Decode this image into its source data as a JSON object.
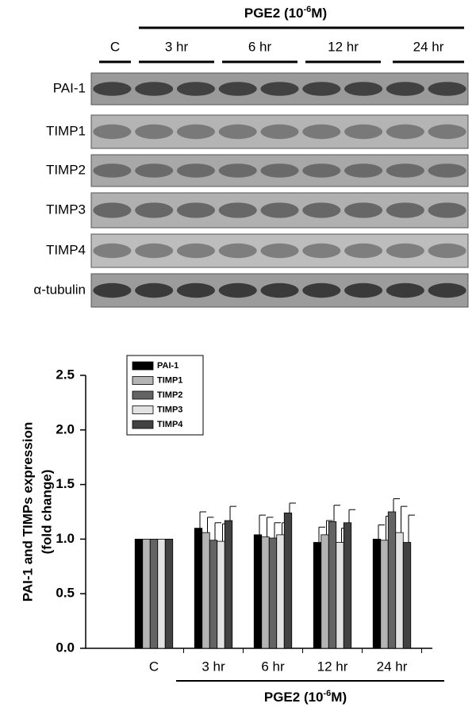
{
  "blot": {
    "title": [
      "PGE2 (10",
      "-6",
      "M)"
    ],
    "lanes": [
      "C",
      "3 hr",
      "6 hr",
      "12 hr",
      "24 hr"
    ],
    "rows": [
      "PAI-1",
      "TIMP1",
      "TIMP2",
      "TIMP3",
      "TIMP4",
      "α-tubulin"
    ]
  },
  "chart_data": {
    "type": "bar",
    "ylabel": [
      "PAI-1 and TIMPs expression",
      "(fold change)"
    ],
    "xlabel": [
      "PGE2 (10",
      "-6",
      "M)"
    ],
    "categories": [
      "C",
      "3 hr",
      "6 hr",
      "12 hr",
      "24 hr"
    ],
    "series": [
      {
        "name": "PAI-1",
        "color": "#000000",
        "values": [
          1.0,
          1.1,
          1.04,
          0.97,
          1.0
        ],
        "errors": [
          null,
          0.15,
          0.18,
          0.14,
          0.13
        ]
      },
      {
        "name": "TIMP1",
        "color": "#b4b4b4",
        "values": [
          1.0,
          1.06,
          1.02,
          1.04,
          0.99
        ],
        "errors": [
          null,
          0.14,
          0.18,
          0.13,
          0.22
        ]
      },
      {
        "name": "TIMP2",
        "color": "#646464",
        "values": [
          1.0,
          0.99,
          1.01,
          1.16,
          1.25
        ],
        "errors": [
          null,
          0.16,
          0.14,
          0.15,
          0.12
        ]
      },
      {
        "name": "TIMP3",
        "color": "#e2e2e2",
        "values": [
          1.0,
          0.98,
          1.04,
          0.97,
          1.06
        ],
        "errors": [
          null,
          0.16,
          0.11,
          0.13,
          0.24
        ]
      },
      {
        "name": "TIMP4",
        "color": "#424242",
        "values": [
          1.0,
          1.17,
          1.24,
          1.15,
          0.97
        ],
        "errors": [
          null,
          0.13,
          0.09,
          0.12,
          0.25
        ]
      }
    ],
    "ylim": [
      0,
      2.5
    ],
    "yticks": [
      {
        "value": 0,
        "label": "0.0"
      },
      {
        "value": 0.5,
        "label": "0.5"
      },
      {
        "value": 1,
        "label": "1.0"
      },
      {
        "value": 1.5,
        "label": "1.5"
      },
      {
        "value": 2,
        "label": "2.0"
      },
      {
        "value": 2.5,
        "label": "2.5"
      }
    ],
    "legend": "upper left"
  }
}
